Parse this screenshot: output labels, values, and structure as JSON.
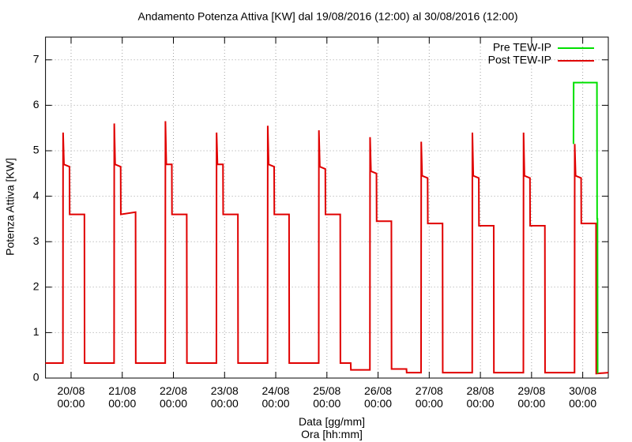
{
  "chart_data": {
    "type": "line",
    "title": "Andamento Potenza Attiva [KW] dal 19/08/2016 (12:00) al 30/08/2016 (12:00)",
    "x_label": "Data [gg/mm]\nOra [hh:mm]",
    "y_label": "Potenza Attiva [KW]",
    "xlim": [
      "19/08 12:00",
      "30/08 12:00"
    ],
    "xticks": [
      {
        "value": "20/08 00:00",
        "label": "20/08\n00:00"
      },
      {
        "value": "21/08 00:00",
        "label": "21/08\n00:00"
      },
      {
        "value": "22/08 00:00",
        "label": "22/08\n00:00"
      },
      {
        "value": "23/08 00:00",
        "label": "23/08\n00:00"
      },
      {
        "value": "24/08 00:00",
        "label": "24/08\n00:00"
      },
      {
        "value": "25/08 00:00",
        "label": "25/08\n00:00"
      },
      {
        "value": "26/08 00:00",
        "label": "26/08\n00:00"
      },
      {
        "value": "27/08 00:00",
        "label": "27/08\n00:00"
      },
      {
        "value": "28/08 00:00",
        "label": "28/08\n00:00"
      },
      {
        "value": "29/08 00:00",
        "label": "29/08\n00:00"
      },
      {
        "value": "30/08 00:00",
        "label": "30/08\n00:00"
      }
    ],
    "ylim": [
      0,
      7.5
    ],
    "yticks": [
      0,
      1,
      2,
      3,
      4,
      5,
      6,
      7
    ],
    "grid": true,
    "legend": "top-right",
    "series": [
      {
        "name": "Pre TEW-IP",
        "color": "#00e000",
        "x": [
          "29/08 19:40",
          "29/08 19:45",
          "30/08 06:40",
          "30/08 06:45",
          "30/08 06:55",
          "30/08 07:00"
        ],
        "values": [
          5.15,
          6.5,
          6.5,
          3.5,
          3.5,
          0.1
        ]
      },
      {
        "name": "Post TEW-IP",
        "color": "#e00000",
        "x": [
          "19/08 12:00",
          "19/08 20:10",
          "19/08 20:15",
          "19/08 20:40",
          "19/08 23:15",
          "19/08 23:20",
          "20/08 06:15",
          "20/08 06:20",
          "20/08 20:10",
          "20/08 20:15",
          "20/08 20:40",
          "20/08 23:15",
          "20/08 23:20",
          "21/08 06:15",
          "21/08 06:20",
          "21/08 20:10",
          "21/08 20:15",
          "21/08 20:40",
          "21/08 23:15",
          "21/08 23:20",
          "22/08 06:15",
          "22/08 06:20",
          "22/08 20:10",
          "22/08 20:15",
          "22/08 20:40",
          "22/08 23:15",
          "22/08 23:20",
          "23/08 06:15",
          "23/08 06:20",
          "23/08 20:10",
          "23/08 20:15",
          "23/08 20:40",
          "23/08 23:15",
          "23/08 23:20",
          "24/08 06:15",
          "24/08 06:20",
          "24/08 20:10",
          "24/08 20:15",
          "24/08 20:40",
          "24/08 23:15",
          "24/08 23:20",
          "25/08 06:15",
          "25/08 06:20",
          "25/08 11:10",
          "25/08 11:15",
          "25/08 20:10",
          "25/08 20:15",
          "25/08 20:40",
          "25/08 23:15",
          "25/08 23:20",
          "26/08 06:15",
          "26/08 06:20",
          "26/08 13:20",
          "26/08 13:25",
          "26/08 20:10",
          "26/08 20:15",
          "26/08 20:40",
          "26/08 23:15",
          "26/08 23:20",
          "27/08 06:15",
          "27/08 06:20",
          "27/08 20:10",
          "27/08 20:15",
          "27/08 20:40",
          "27/08 23:15",
          "27/08 23:20",
          "28/08 06:15",
          "28/08 06:20",
          "28/08 20:10",
          "28/08 20:15",
          "28/08 20:40",
          "28/08 23:15",
          "28/08 23:20",
          "29/08 06:15",
          "29/08 06:20",
          "29/08 20:10",
          "29/08 20:15",
          "29/08 20:40",
          "29/08 23:15",
          "29/08 23:20",
          "30/08 06:15",
          "30/08 06:20",
          "30/08 12:00"
        ],
        "values": [
          0.33,
          0.33,
          5.4,
          4.7,
          4.65,
          3.6,
          3.6,
          0.33,
          0.33,
          5.6,
          4.7,
          4.65,
          3.6,
          3.65,
          0.33,
          0.33,
          5.65,
          4.7,
          4.7,
          3.6,
          3.6,
          0.33,
          0.33,
          5.4,
          4.7,
          4.7,
          3.6,
          3.6,
          0.33,
          0.33,
          5.55,
          4.7,
          4.65,
          3.6,
          3.6,
          0.33,
          0.33,
          5.45,
          4.65,
          4.6,
          3.6,
          3.6,
          0.33,
          0.33,
          0.18,
          0.18,
          5.3,
          4.55,
          4.5,
          3.45,
          3.45,
          0.2,
          0.2,
          0.12,
          0.12,
          5.2,
          4.45,
          4.4,
          3.4,
          3.4,
          0.12,
          0.12,
          5.4,
          4.45,
          4.4,
          3.35,
          3.35,
          0.12,
          0.12,
          5.4,
          4.45,
          4.4,
          3.35,
          3.35,
          0.12,
          0.12,
          5.15,
          4.45,
          4.4,
          3.4,
          3.4,
          0.1,
          0.12
        ]
      }
    ]
  }
}
